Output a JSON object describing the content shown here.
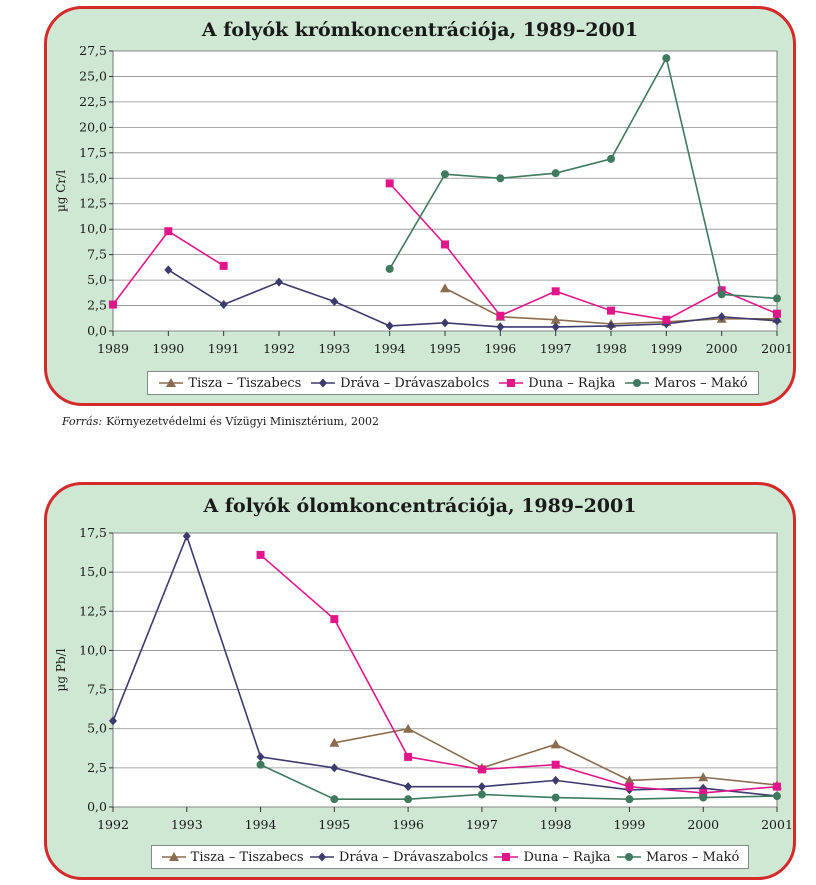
{
  "source": {
    "label": "Forrás:",
    "text": "Környezetvédelmi és Vízügyi Minisztérium, 2002"
  },
  "legend": [
    {
      "name": "Tisza – Tiszabecs",
      "color": "#8a6d4e",
      "marker": "triangle"
    },
    {
      "name": "Dráva – Drávaszabolcs",
      "color": "#3d3a6e",
      "marker": "diamond"
    },
    {
      "name": "Duna – Rajka",
      "color": "#e0168a",
      "marker": "square"
    },
    {
      "name": "Maros – Makó",
      "color": "#3f7a5e",
      "marker": "circle"
    }
  ],
  "chart_data": [
    {
      "type": "line",
      "title": "A folyók krómkoncentrációja, 1989–2001",
      "ylabel": "µg Cr/l",
      "x": [
        1989,
        1990,
        1991,
        1992,
        1993,
        1994,
        1995,
        1996,
        1997,
        1998,
        1999,
        2000,
        2001
      ],
      "ylim": [
        0,
        27.5
      ],
      "yticks": [
        "0,0",
        "2,5",
        "5,0",
        "7,5",
        "10,0",
        "12,5",
        "15,0",
        "17,5",
        "20,0",
        "22,5",
        "25,0",
        "27,5"
      ],
      "grid": true,
      "legend_position": "bottom",
      "series": [
        {
          "name": "Tisza – Tiszabecs",
          "values": [
            null,
            null,
            null,
            null,
            null,
            null,
            4.2,
            1.4,
            1.1,
            0.7,
            0.9,
            1.2,
            1.2
          ]
        },
        {
          "name": "Dráva – Drávaszabolcs",
          "values": [
            null,
            6.0,
            2.6,
            4.8,
            2.9,
            0.5,
            0.8,
            0.4,
            0.4,
            0.5,
            0.7,
            1.4,
            1.0
          ]
        },
        {
          "name": "Duna – Rajka",
          "values": [
            2.6,
            9.8,
            6.4,
            null,
            null,
            14.5,
            8.5,
            1.5,
            3.9,
            2.0,
            1.1,
            4.0,
            1.7
          ]
        },
        {
          "name": "Maros – Makó",
          "values": [
            null,
            null,
            null,
            null,
            null,
            6.1,
            15.4,
            15.0,
            15.5,
            16.9,
            26.8,
            3.6,
            3.2
          ]
        }
      ]
    },
    {
      "type": "line",
      "title": "A folyók ólomkoncentrációja, 1989–2001",
      "ylabel": "µg Pb/l",
      "x": [
        1992,
        1993,
        1994,
        1995,
        1996,
        1997,
        1998,
        1999,
        2000,
        2001
      ],
      "ylim": [
        0,
        17.5
      ],
      "yticks": [
        "0,0",
        "2,5",
        "5,0",
        "7,5",
        "10,0",
        "12,5",
        "15,0",
        "17,5"
      ],
      "grid": true,
      "legend_position": "bottom",
      "series": [
        {
          "name": "Tisza – Tiszabecs",
          "values": [
            null,
            null,
            null,
            4.1,
            5.0,
            2.5,
            4.0,
            1.7,
            1.9,
            1.4
          ]
        },
        {
          "name": "Dráva – Drávaszabolcs",
          "values": [
            5.5,
            17.3,
            3.2,
            2.5,
            1.3,
            1.3,
            1.7,
            1.1,
            1.2,
            0.7
          ]
        },
        {
          "name": "Duna – Rajka",
          "values": [
            null,
            null,
            16.1,
            12.0,
            3.2,
            2.4,
            2.7,
            1.3,
            0.9,
            1.3
          ]
        },
        {
          "name": "Maros – Makó",
          "values": [
            null,
            null,
            2.7,
            0.5,
            0.5,
            0.8,
            0.6,
            0.5,
            0.6,
            0.7
          ]
        }
      ]
    }
  ]
}
